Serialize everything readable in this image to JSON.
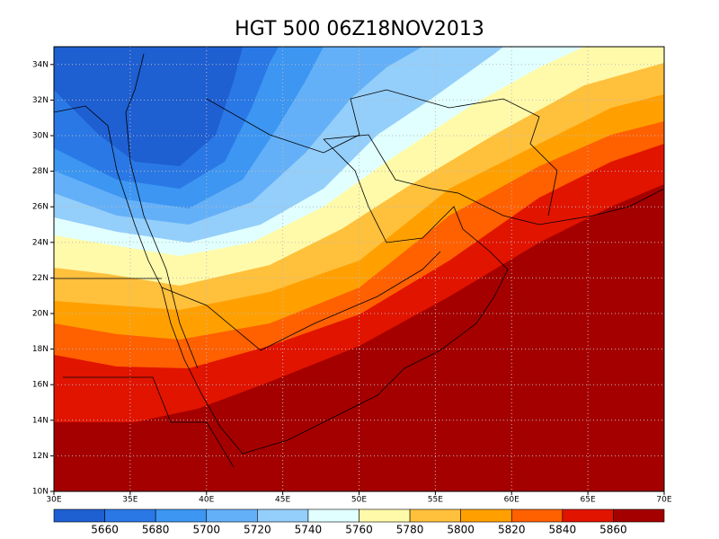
{
  "chart_data": {
    "type": "filled-contour-map",
    "title": "HGT 500 06Z18NOV2013",
    "xlim": [
      30,
      70
    ],
    "ylim": [
      10,
      35
    ],
    "grid": true,
    "xticks": [
      {
        "value": 30,
        "label": "30E"
      },
      {
        "value": 35,
        "label": "35E"
      },
      {
        "value": 40,
        "label": "40E"
      },
      {
        "value": 45,
        "label": "45E"
      },
      {
        "value": 50,
        "label": "50E"
      },
      {
        "value": 55,
        "label": "55E"
      },
      {
        "value": 60,
        "label": "60E"
      },
      {
        "value": 65,
        "label": "65E"
      },
      {
        "value": 70,
        "label": "70E"
      }
    ],
    "yticks": [
      {
        "value": 10,
        "label": "10N"
      },
      {
        "value": 12,
        "label": "12N"
      },
      {
        "value": 14,
        "label": "14N"
      },
      {
        "value": 16,
        "label": "16N"
      },
      {
        "value": 18,
        "label": "18N"
      },
      {
        "value": 20,
        "label": "20N"
      },
      {
        "value": 22,
        "label": "22N"
      },
      {
        "value": 24,
        "label": "24N"
      },
      {
        "value": 26,
        "label": "26N"
      },
      {
        "value": 28,
        "label": "28N"
      },
      {
        "value": 30,
        "label": "30N"
      },
      {
        "value": 32,
        "label": "32N"
      },
      {
        "value": 34,
        "label": "34N"
      }
    ],
    "levels": [
      5660,
      5680,
      5700,
      5720,
      5740,
      5760,
      5780,
      5800,
      5820,
      5840,
      5860
    ],
    "colors": [
      "#1e5fd2",
      "#2a78e6",
      "#3c96f2",
      "#64b0f8",
      "#94cefa",
      "#e1ffff",
      "#fffaaa",
      "#ffc03c",
      "#ffa000",
      "#ff6000",
      "#e11400",
      "#a50000"
    ]
  }
}
